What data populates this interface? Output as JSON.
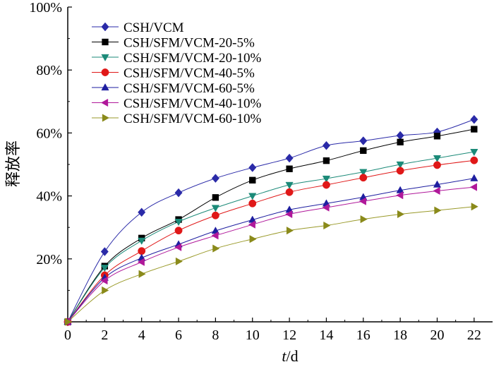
{
  "chart_data": {
    "type": "line",
    "title": "",
    "xlabel_italic": "t",
    "xlabel_rest": "/d",
    "ylabel": "释放率",
    "xlim": [
      0,
      23
    ],
    "ylim": [
      0,
      100
    ],
    "xticks": [
      0,
      2,
      4,
      6,
      8,
      10,
      12,
      14,
      16,
      18,
      20,
      22
    ],
    "yticks": [
      20,
      40,
      60,
      80,
      100
    ],
    "ytick_labels": [
      "20%",
      "40%",
      "60%",
      "80%",
      "100%"
    ],
    "grid": false,
    "legend_position": "top-left",
    "x": [
      0,
      2,
      4,
      6,
      8,
      10,
      12,
      14,
      16,
      18,
      20,
      22
    ],
    "series": [
      {
        "name": "CSH/VCM",
        "marker": "diamond",
        "color": "#2a2aa8",
        "markerColor": "#2a2aa8",
        "values": [
          0,
          22.3,
          34.8,
          41.0,
          45.6,
          49.0,
          52.0,
          56.0,
          57.5,
          59.2,
          60.3,
          64.3
        ]
      },
      {
        "name": "CSH/SFM/VCM-20-5%",
        "marker": "square",
        "color": "#000000",
        "markerColor": "#000000",
        "values": [
          0,
          17.7,
          26.6,
          32.5,
          39.5,
          45.0,
          48.6,
          51.2,
          54.4,
          57.1,
          59.0,
          61.2
        ]
      },
      {
        "name": "CSH/SFM/VCM-20-10%",
        "marker": "triangle-down",
        "color": "#1b8a78",
        "markerColor": "#1b8a78",
        "values": [
          0,
          17.2,
          25.8,
          31.8,
          36.2,
          40.0,
          43.5,
          45.5,
          47.6,
          50.0,
          52.0,
          54.0
        ]
      },
      {
        "name": "CSH/SFM/VCM-40-5%",
        "marker": "circle",
        "color": "#e01818",
        "markerColor": "#e01818",
        "values": [
          0,
          14.8,
          22.5,
          29.0,
          33.8,
          37.6,
          41.2,
          43.5,
          45.8,
          48.0,
          49.8,
          51.3
        ]
      },
      {
        "name": "CSH/SFM/VCM-60-5%",
        "marker": "triangle-up",
        "color": "#1e1ea0",
        "markerColor": "#1e1ea0",
        "values": [
          0,
          14.0,
          20.3,
          24.6,
          28.9,
          32.4,
          35.6,
          37.6,
          39.6,
          41.8,
          43.6,
          45.6
        ]
      },
      {
        "name": "CSH/SFM/VCM-40-10%",
        "marker": "triangle-left",
        "color": "#b0189a",
        "markerColor": "#b0189a",
        "values": [
          0,
          13.1,
          19.0,
          23.7,
          27.4,
          30.9,
          34.2,
          36.3,
          38.3,
          40.2,
          41.6,
          42.8
        ]
      },
      {
        "name": "CSH/SFM/VCM-60-10%",
        "marker": "triangle-right",
        "color": "#9a9a2a",
        "markerColor": "#8a8a1a",
        "values": [
          0,
          10.0,
          15.2,
          19.2,
          23.3,
          26.3,
          29.0,
          30.6,
          32.6,
          34.2,
          35.4,
          36.6
        ]
      }
    ]
  }
}
